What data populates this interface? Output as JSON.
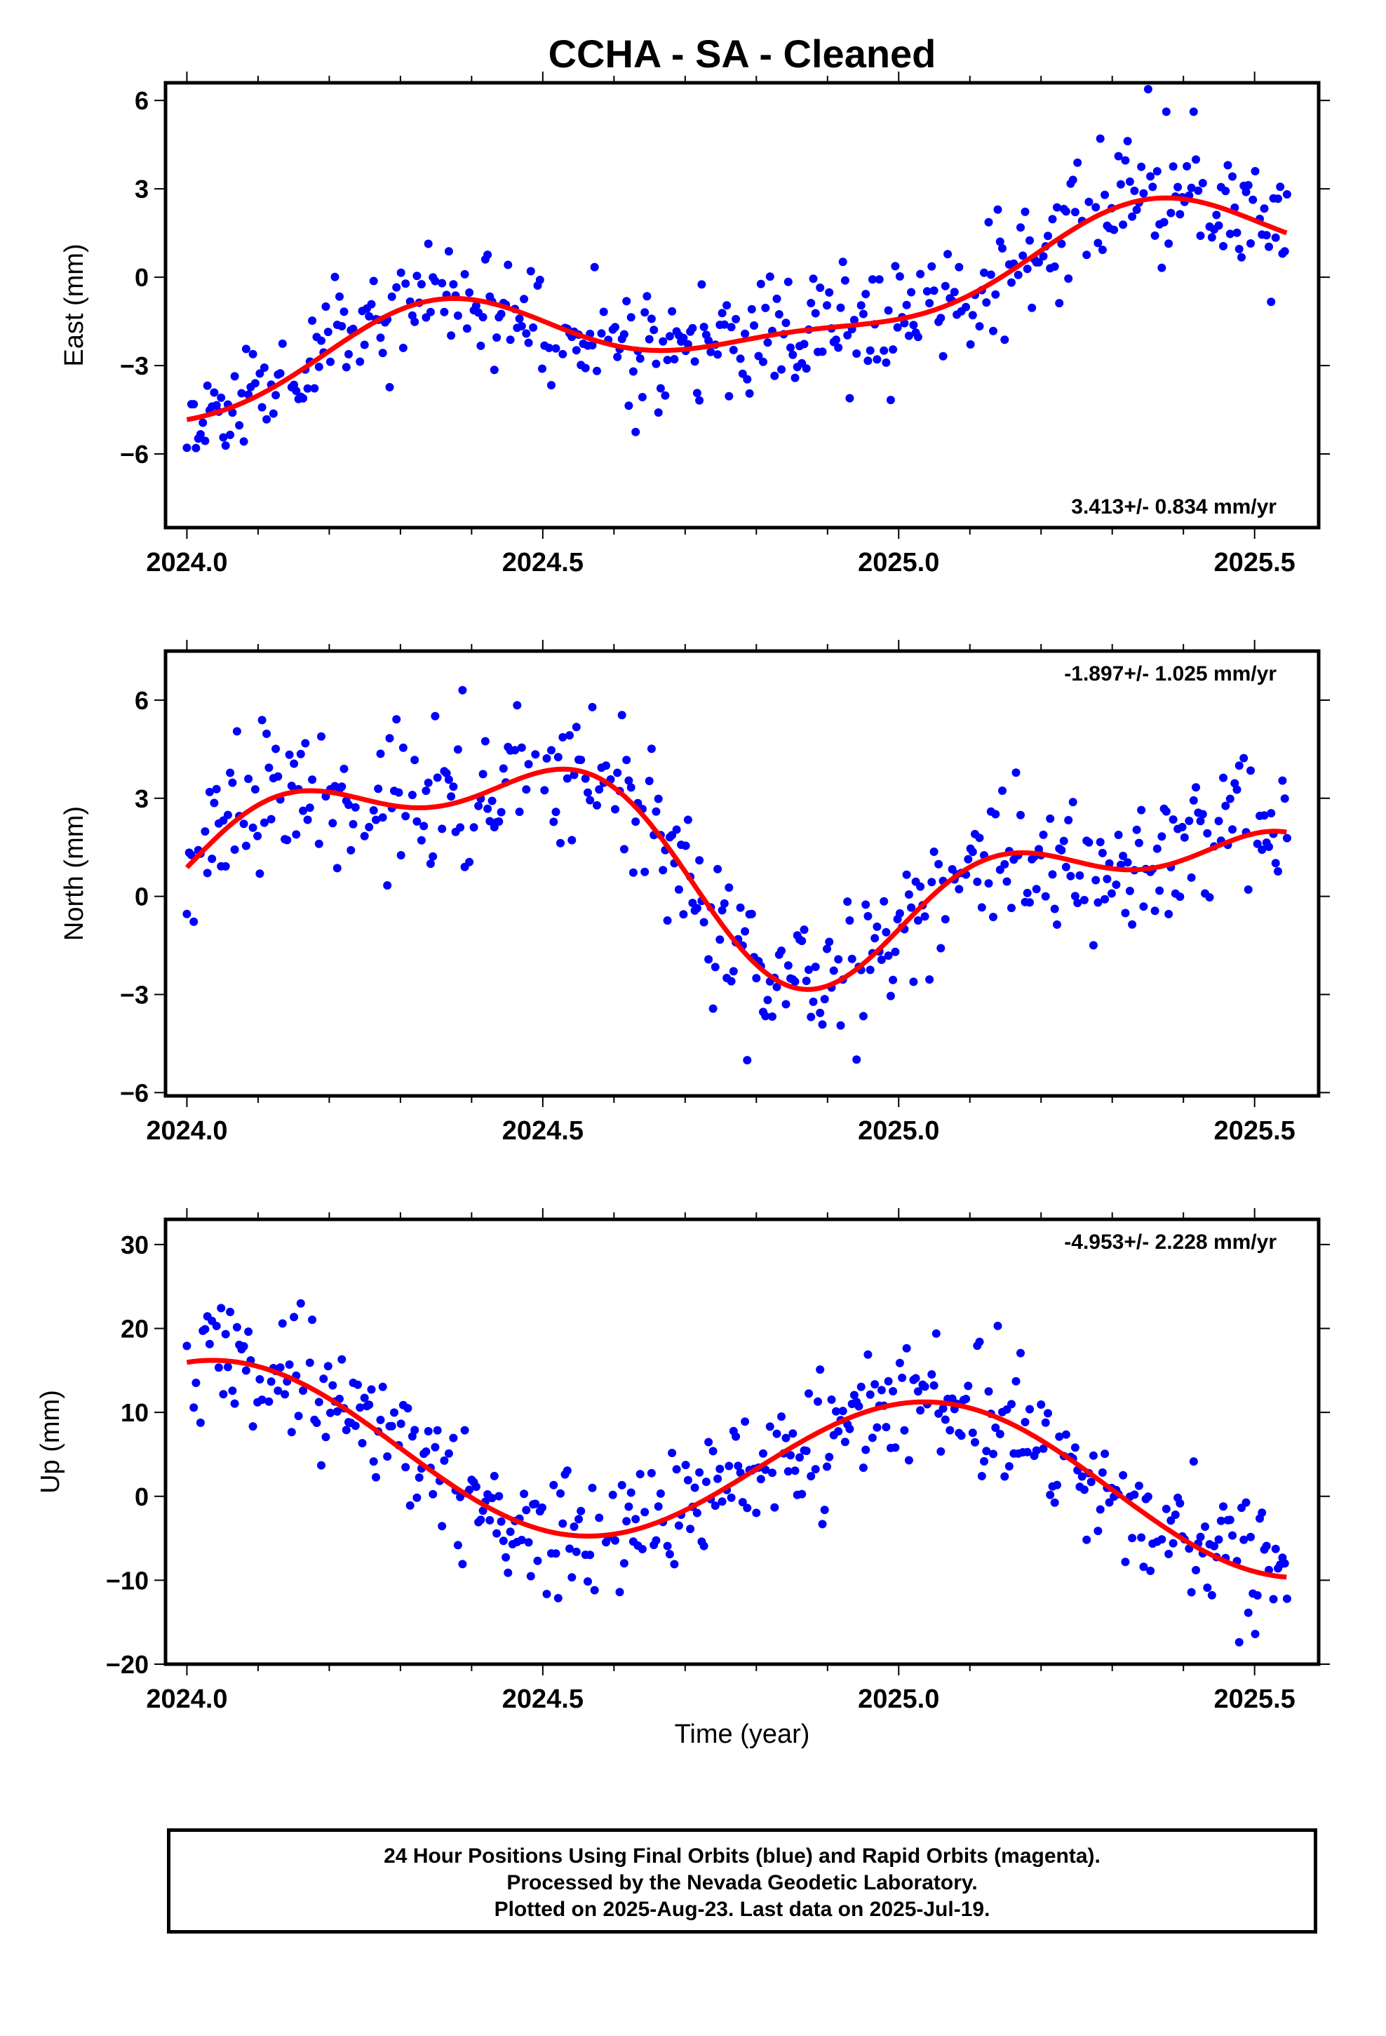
{
  "chart_data": [
    {
      "type": "scatter",
      "title": "CCHA  - SA - Cleaned",
      "ylabel": "East (mm)",
      "xlabel": "",
      "xlim": [
        2023.97,
        2025.59
      ],
      "ylim": [
        -8.5,
        6.6
      ],
      "yticks": [
        6,
        3,
        0,
        -3,
        -6
      ],
      "ytick_labels": [
        "6",
        "3",
        "0",
        "−3",
        "−6"
      ],
      "xticks": [
        2024.0,
        2024.5,
        2025.0,
        2025.5
      ],
      "xtick_labels": [
        "2024.0",
        "2024.5",
        "2025.0",
        "2025.5"
      ],
      "rate_label": "3.413+/- 0.834 mm/yr",
      "rate_position": "bottom-right",
      "series": [
        {
          "name": "Final Orbits",
          "color": "#0000ff",
          "kind": "points",
          "model": {
            "offset": -1.3,
            "rate": 3.413,
            "a1": -1.4,
            "p1": 0.15,
            "a2": 0.5,
            "p2": 0.3,
            "noise": 1.0,
            "seed": 11
          }
        },
        {
          "name": "fit",
          "color": "#ff0000",
          "kind": "line",
          "model": {
            "offset": -1.3,
            "rate": 3.413,
            "a1": -1.4,
            "p1": 0.15,
            "a2": 0.5,
            "p2": 0.3
          }
        }
      ]
    },
    {
      "type": "scatter",
      "ylabel": "North (mm)",
      "xlabel": "",
      "xlim": [
        2023.97,
        2025.59
      ],
      "ylim": [
        -6.1,
        7.5
      ],
      "yticks": [
        6,
        3,
        0,
        -3,
        -6
      ],
      "ytick_labels": [
        "6",
        "3",
        "0",
        "−3",
        "−6"
      ],
      "xticks": [
        2024.0,
        2024.5,
        2025.0,
        2025.5
      ],
      "xtick_labels": [
        "2024.0",
        "2024.5",
        "2025.0",
        "2025.5"
      ],
      "rate_label": "-1.897+/- 1.025 mm/yr",
      "rate_position": "top-right",
      "series": [
        {
          "name": "Final Orbits",
          "color": "#0000ff",
          "kind": "points",
          "model": {
            "offset": 1.0,
            "rate": -1.897,
            "a1": -2.4,
            "p1": 0.1,
            "a2": 1.3,
            "p2": -0.2,
            "noise": 1.1,
            "seed": 23
          }
        },
        {
          "name": "fit",
          "color": "#ff0000",
          "kind": "line",
          "model": {
            "offset": 1.0,
            "rate": -1.897,
            "a1": -2.4,
            "p1": 0.1,
            "a2": 1.3,
            "p2": -0.2
          }
        }
      ]
    },
    {
      "type": "scatter",
      "ylabel": "Up (mm)",
      "xlabel": "Time (year)",
      "xlim": [
        2023.97,
        2025.59
      ],
      "ylim": [
        -20,
        33
      ],
      "yticks": [
        30,
        20,
        10,
        0,
        -10,
        -20
      ],
      "ytick_labels": [
        "30",
        "20",
        "10",
        "0",
        "−10",
        "−20"
      ],
      "xticks": [
        2024.0,
        2024.5,
        2025.0,
        2025.5
      ],
      "xtick_labels": [
        "2024.0",
        "2024.5",
        "2025.0",
        "2025.5"
      ],
      "rate_label": "-4.953+/- 2.228 mm/yr",
      "rate_position": "top-right",
      "series": [
        {
          "name": "Final Orbits",
          "color": "#0000ff",
          "kind": "points",
          "model": {
            "offset": 3.5,
            "rate": -4.953,
            "a1": 9.2,
            "p1": -0.05,
            "a2": 0.0,
            "p2": 0.0,
            "noise": 3.6,
            "seed": 37
          }
        },
        {
          "name": "fit",
          "color": "#ff0000",
          "kind": "line",
          "model": {
            "offset": 3.5,
            "rate": -4.953,
            "a1": 9.2,
            "p1": -0.05,
            "a2": 0.0,
            "p2": 0.0
          }
        }
      ]
    }
  ],
  "footer": {
    "line1": "24 Hour Positions Using Final Orbits (blue) and Rapid Orbits (magenta).",
    "line2": "Processed by the Nevada Geodetic Laboratory.",
    "line3": "Plotted on 2025-Aug-23. Last data on 2025-Jul-19."
  }
}
